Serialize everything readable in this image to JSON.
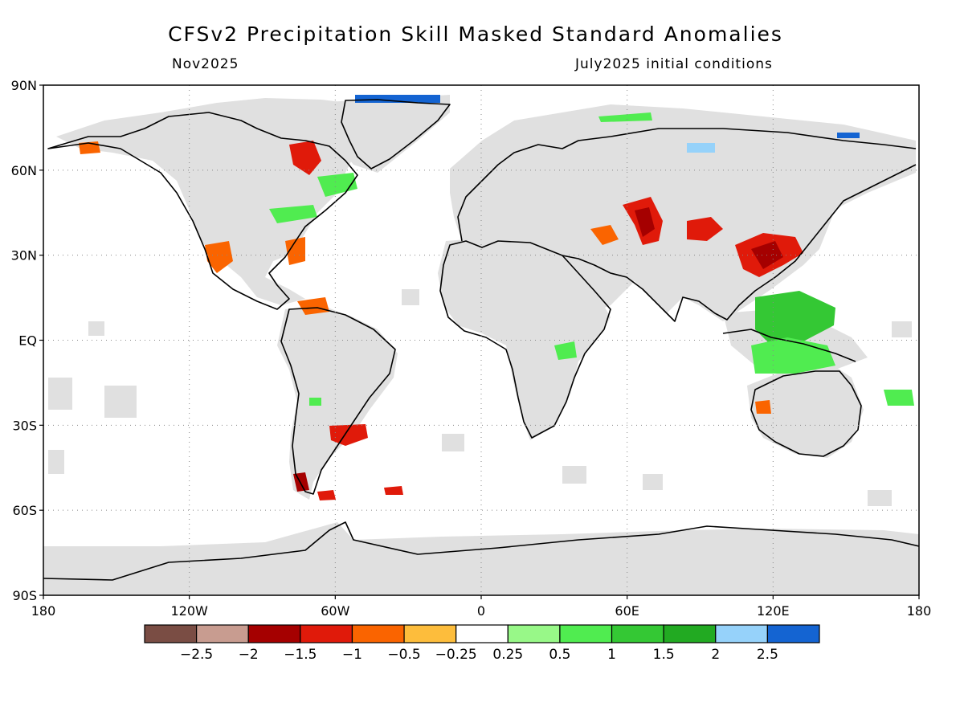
{
  "title": "CFSv2 Precipitation Skill Masked Standard Anomalies",
  "target_month": "Nov2025",
  "initial_conditions": "July2025 initial conditions",
  "map": {
    "lat_labels": [
      "90N",
      "60N",
      "30N",
      "EQ",
      "30S",
      "60S",
      "90S"
    ],
    "lon_labels": [
      "180",
      "120W",
      "60W",
      "0",
      "60E",
      "120E",
      "180"
    ],
    "land_color": "#e0e0e0",
    "coast_color": "#000000",
    "grid": true
  },
  "legend": {
    "labels": [
      "-2.5",
      "-2",
      "-1.5",
      "-1",
      "-0.5",
      "-0.25",
      "0.25",
      "0.5",
      "1",
      "1.5",
      "2",
      "2.5"
    ],
    "colors": [
      "#7a4d44",
      "#c89c90",
      "#a50000",
      "#e01a0a",
      "#fa6400",
      "#fdbd3c",
      "#ffffff",
      "#98f888",
      "#50ec50",
      "#34c834",
      "#22aa22",
      "#96d2fa",
      "#1464d2"
    ]
  },
  "anomalies": [
    {
      "region": "Central Asia",
      "lon": 65,
      "lat": 38,
      "value": -1.5
    },
    {
      "region": "China",
      "lon": 115,
      "lat": 30,
      "value": -1.5
    },
    {
      "region": "Northwest India",
      "lon": 92,
      "lat": 37,
      "value": -1.5
    },
    {
      "region": "Hudson Bay",
      "lon": -75,
      "lat": 62,
      "value": -1.5
    },
    {
      "region": "Northern Argentina",
      "lon": -60,
      "lat": -32,
      "value": -1.5
    },
    {
      "region": "Southern Chile",
      "lon": -72,
      "lat": -50,
      "value": -1.5
    },
    {
      "region": "Mexico",
      "lon": -105,
      "lat": 28,
      "value": -1.0
    },
    {
      "region": "Southeast US",
      "lon": -80,
      "lat": 32,
      "value": -1.0
    },
    {
      "region": "Philippines",
      "lon": 125,
      "lat": 12,
      "value": 1.5
    },
    {
      "region": "Maritime Continent",
      "lon": 118,
      "lat": -2,
      "value": 1.0
    },
    {
      "region": "Arctic Greenland",
      "lon": -30,
      "lat": 84,
      "value": 2.5
    },
    {
      "region": "Eastern Canada",
      "lon": -60,
      "lat": 50,
      "value": 1.0
    }
  ]
}
